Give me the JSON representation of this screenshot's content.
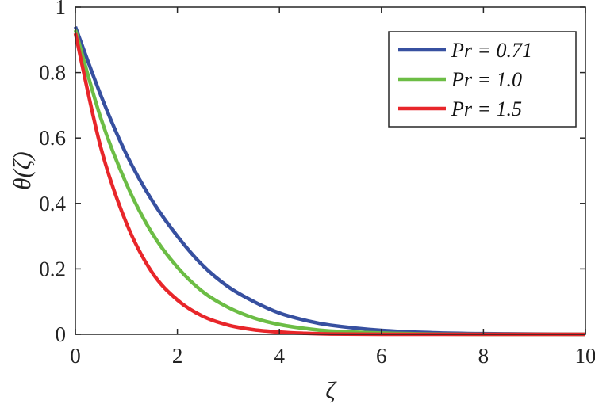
{
  "chart_data": {
    "type": "line",
    "title": "",
    "xlabel": "ζ",
    "ylabel": "θ(ζ)",
    "xlim": [
      0,
      10
    ],
    "ylim": [
      0,
      1
    ],
    "xticks": [
      "0",
      "2",
      "4",
      "6",
      "8",
      "10"
    ],
    "yticks": [
      "0",
      "0.2",
      "0.4",
      "0.6",
      "0.8",
      "1"
    ],
    "grid": false,
    "legend_position": "top-right",
    "series": [
      {
        "name": "Pr = 0.71",
        "color": "#3750a0",
        "x": [
          0,
          0.5,
          1,
          1.5,
          2,
          2.5,
          3,
          3.5,
          4,
          4.5,
          5,
          6,
          7,
          8,
          9,
          10
        ],
        "y": [
          0.94,
          0.73,
          0.55,
          0.41,
          0.3,
          0.21,
          0.145,
          0.1,
          0.065,
          0.043,
          0.028,
          0.012,
          0.005,
          0.002,
          0.001,
          0.0
        ]
      },
      {
        "name": "Pr = 1.0",
        "color": "#6cbd45",
        "x": [
          0,
          0.5,
          1,
          1.5,
          2,
          2.5,
          3,
          3.5,
          4,
          4.5,
          5,
          6,
          7,
          8,
          9,
          10
        ],
        "y": [
          0.93,
          0.66,
          0.46,
          0.31,
          0.205,
          0.13,
          0.082,
          0.05,
          0.03,
          0.018,
          0.01,
          0.004,
          0.001,
          0.0,
          0.0,
          0.0
        ]
      },
      {
        "name": "Pr = 1.5",
        "color": "#e8262a",
        "x": [
          0,
          0.5,
          1,
          1.5,
          2,
          2.5,
          3,
          3.5,
          4,
          4.5,
          5,
          6,
          7,
          8,
          9,
          10
        ],
        "y": [
          0.92,
          0.57,
          0.34,
          0.19,
          0.105,
          0.055,
          0.028,
          0.014,
          0.007,
          0.003,
          0.001,
          0.0,
          0.0,
          0.0,
          0.0,
          0.0
        ]
      }
    ]
  }
}
